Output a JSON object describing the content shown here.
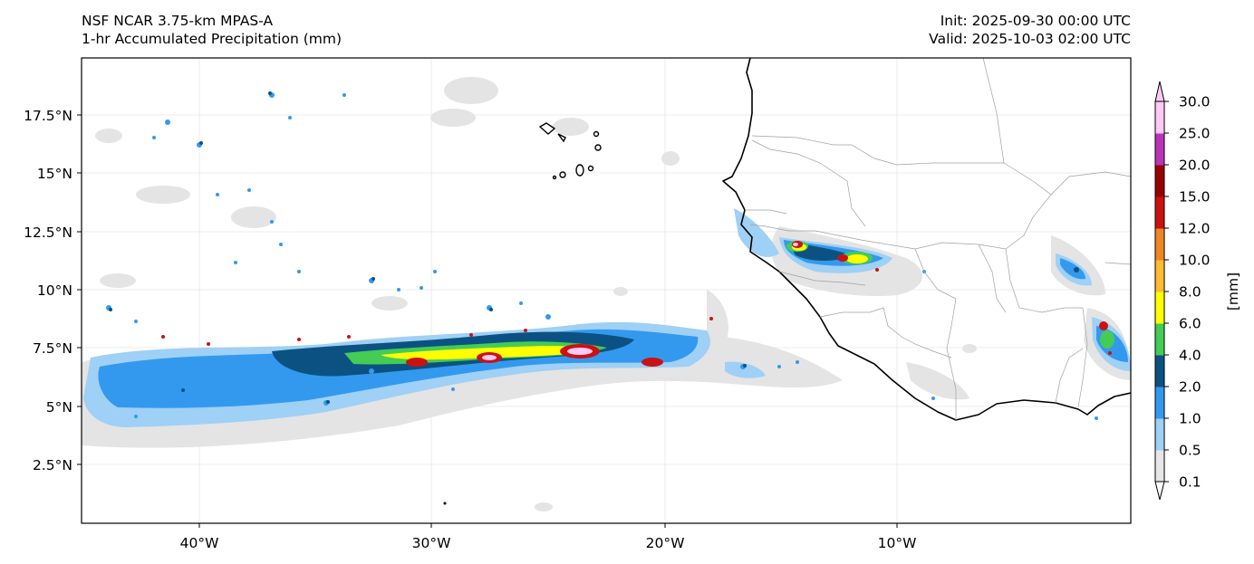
{
  "header": {
    "model_title": "NSF NCAR 3.75-km MPAS-A",
    "field_title": "1-hr Accumulated Precipitation (mm)",
    "init_time": "Init: 2025-09-30 00:00 UTC",
    "valid_time": "Valid: 2025-10-03 02:00 UTC"
  },
  "map": {
    "lon_ticks": [
      "40°W",
      "30°W",
      "20°W",
      "10°W"
    ],
    "lat_ticks": [
      "17.5°N",
      "15°N",
      "12.5°N",
      "10°N",
      "7.5°N",
      "5°N",
      "2.5°N"
    ]
  },
  "colorbar": {
    "label": "[mm]",
    "levels": [
      "0.1",
      "0.5",
      "1.0",
      "2.0",
      "4.0",
      "6.0",
      "8.0",
      "10.0",
      "12.0",
      "15.0",
      "20.0",
      "25.0",
      "30.0"
    ],
    "colors": [
      "#e6e6e6",
      "#9fd0f5",
      "#3399ee",
      "#0b5282",
      "#44cc55",
      "#ffff00",
      "#ffbb33",
      "#ee8822",
      "#cc1111",
      "#990000",
      "#bb33bb",
      "#ffc8f5"
    ]
  }
}
